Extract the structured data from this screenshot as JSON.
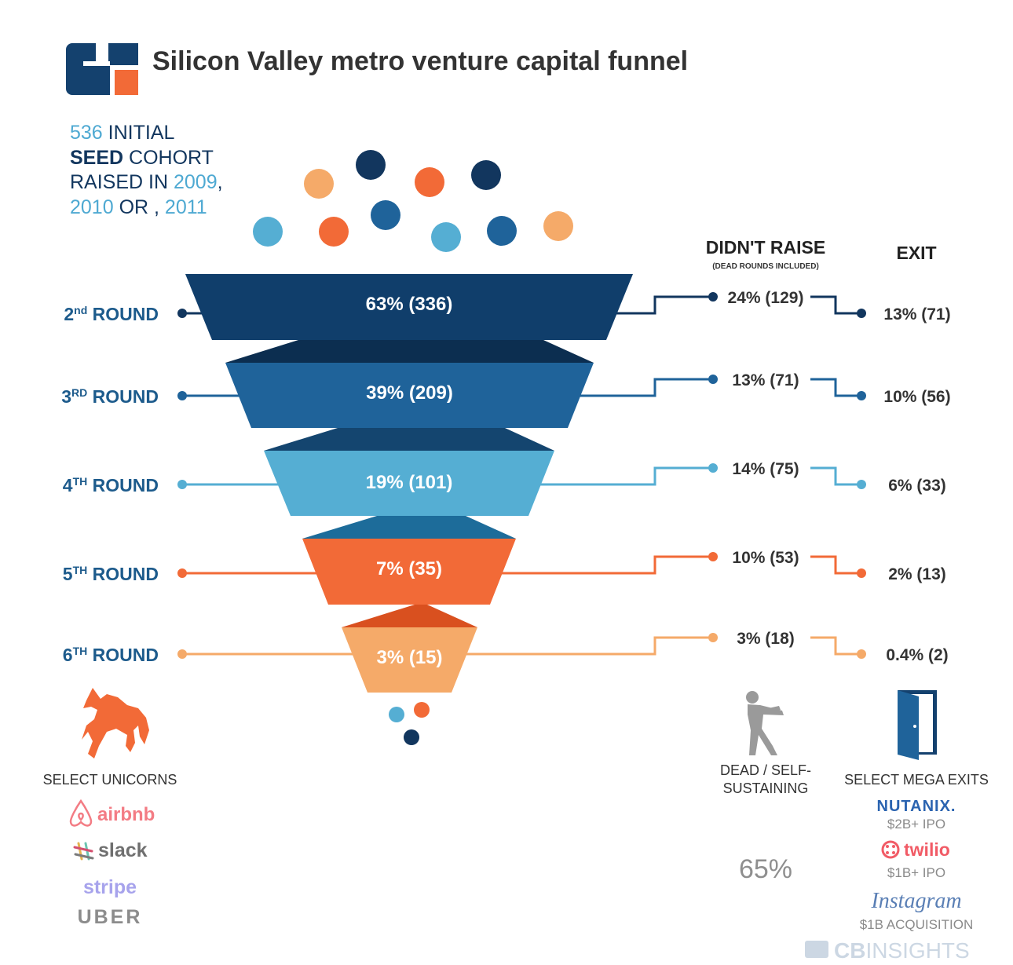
{
  "title": "Silicon Valley metro venture capital funnel",
  "cohort": {
    "line1_num": "536",
    "line1_text": " INITIAL",
    "line2_bold": "SEED",
    "line2_text": " COHORT",
    "line3_text": "RAISED IN ",
    "line3_year": "2009",
    "line3_comma": ",",
    "line4_year1": "2010",
    "line4_text": " OR , ",
    "line4_year2": "2011"
  },
  "headers": {
    "didnt_raise": "DIDN'T RAISE",
    "didnt_raise_sub": "(DEAD ROUNDS INCLUDED)",
    "exit": "EXIT"
  },
  "colors": {
    "stage_colors": [
      "#103e6b",
      "#1f639a",
      "#55aed3",
      "#f26a37",
      "#f5aa69"
    ],
    "twist_colors": [
      "#0c2e50",
      "#14456f",
      "#1d6c9a",
      "#d9501f"
    ],
    "cohort_accent": "#4ea9d2",
    "cohort_dark": "#12365e",
    "round_label": "#1d5b8c"
  },
  "chart_data": {
    "type": "funnel",
    "initial_cohort": 536,
    "stages": [
      {
        "label_main": "2",
        "label_sup": "nd",
        "label_rest": " ROUND",
        "value_pct": 63,
        "value_count": 336,
        "text": "63% (336)",
        "didnt_raise": "24% (129)",
        "exit": "13% (71)"
      },
      {
        "label_main": "3",
        "label_sup": "RD",
        "label_rest": " ROUND",
        "value_pct": 39,
        "value_count": 209,
        "text": "39% (209)",
        "didnt_raise": "13% (71)",
        "exit": "10% (56)"
      },
      {
        "label_main": "4",
        "label_sup": "TH",
        "label_rest": " ROUND",
        "value_pct": 19,
        "value_count": 101,
        "text": "19% (101)",
        "didnt_raise": "14% (75)",
        "exit": "6% (33)"
      },
      {
        "label_main": "5",
        "label_sup": "TH",
        "label_rest": " ROUND",
        "value_pct": 7,
        "value_count": 35,
        "text": "7% (35)",
        "didnt_raise": "10% (53)",
        "exit": "2% (13)"
      },
      {
        "label_main": "6",
        "label_sup": "TH",
        "label_rest": " ROUND",
        "value_pct": 3,
        "value_count": 15,
        "text": "3% (15)",
        "didnt_raise": "3% (18)",
        "exit": "0.4% (2)"
      }
    ]
  },
  "bottom": {
    "unicorns_caption": "SELECT UNICORNS",
    "unicorns": [
      "airbnb",
      "slack",
      "stripe",
      "UBER"
    ],
    "dead_caption_1": "DEAD / SELF-",
    "dead_caption_2": "SUSTAINING",
    "dead_total": "65%",
    "exits_caption": "SELECT MEGA EXITS",
    "exits": [
      {
        "name": "NUTANIX.",
        "detail": "$2B+ IPO"
      },
      {
        "name": "twilio",
        "detail": "$1B+ IPO"
      },
      {
        "name": "Instagram",
        "detail": "$1B ACQUISITION"
      }
    ],
    "brand": "CBINSIGHTS",
    "brand_bold": "CB",
    "brand_light": "INSIGHTS"
  },
  "icons": {
    "logo": "cb-insights-logo",
    "unicorn": "unicorn-icon",
    "zombie": "zombie-icon",
    "door": "open-door-icon",
    "airbnb": "airbnb-logo",
    "slack": "slack-logo",
    "twilio": "twilio-logo"
  }
}
